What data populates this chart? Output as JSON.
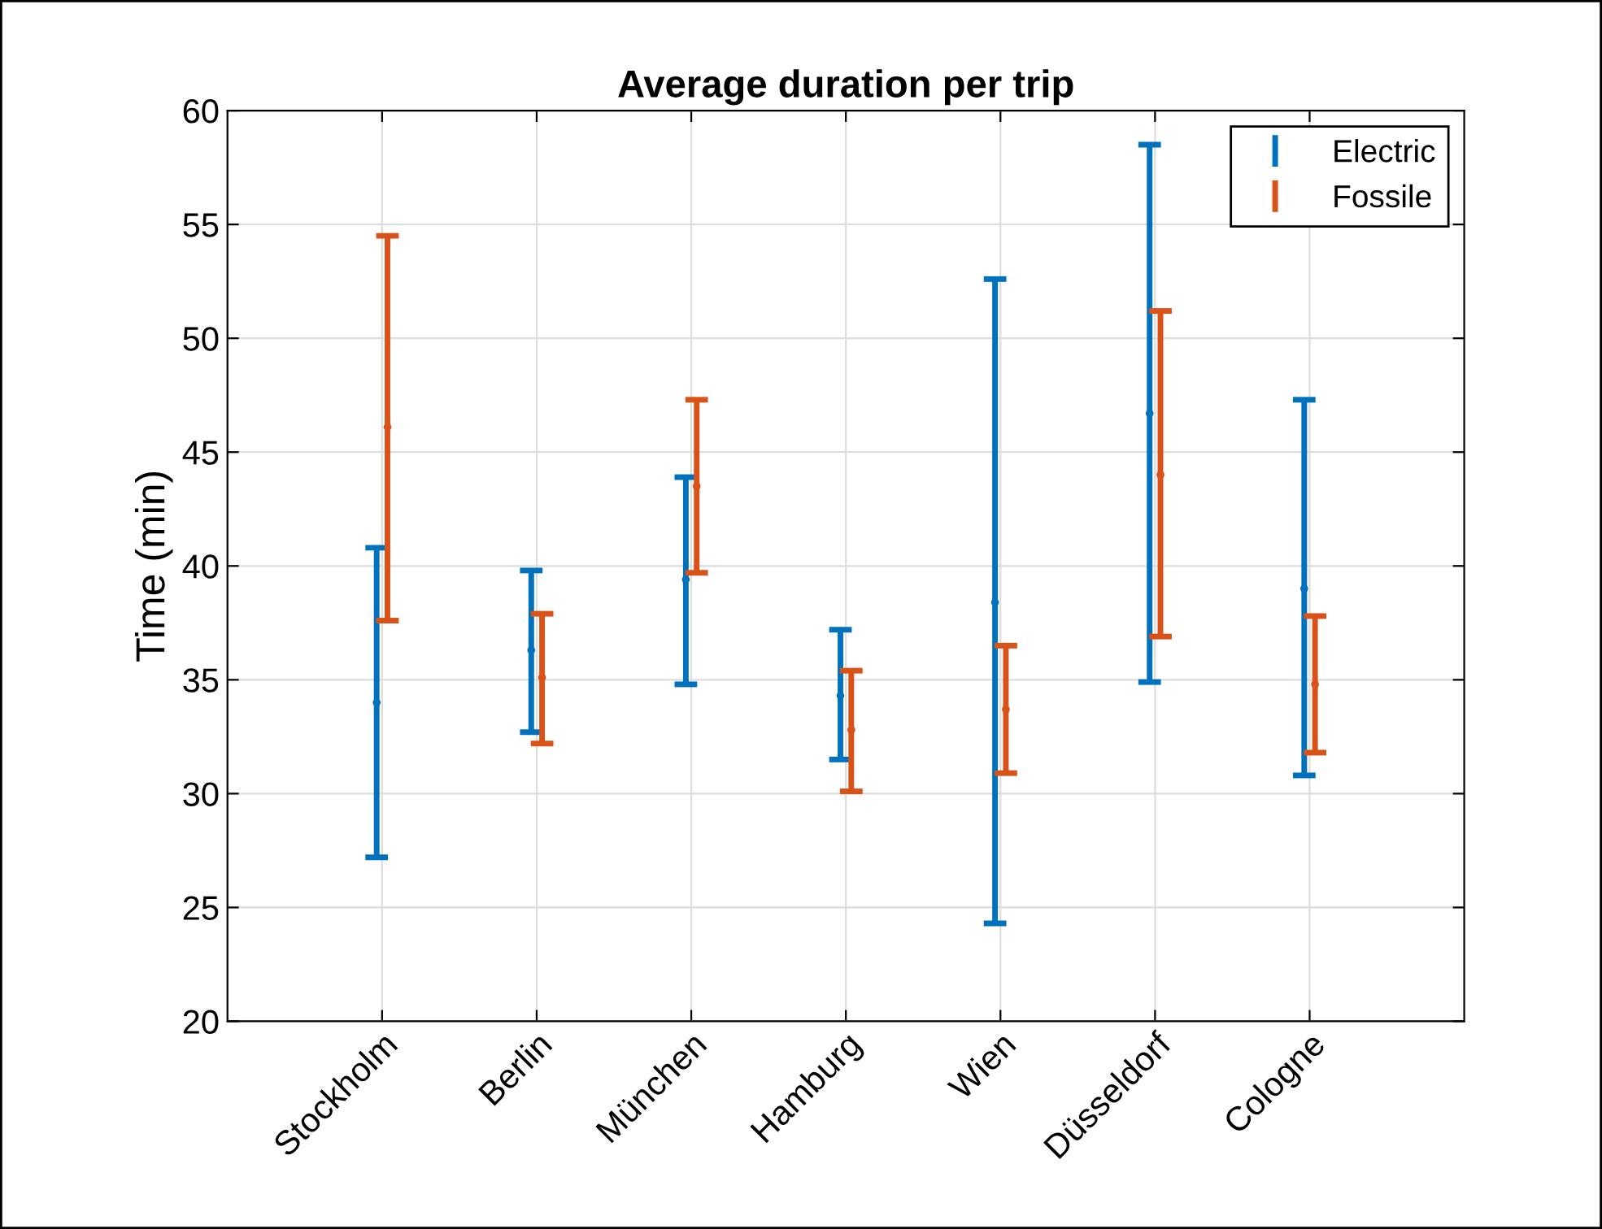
{
  "chart_data": {
    "type": "scatter",
    "title": "Average duration per trip",
    "ylabel": "Time (min)",
    "categories": [
      "Stockholm",
      "Berlin",
      "München",
      "Hamburg",
      "Wien",
      "Düsseldorf",
      "Cologne"
    ],
    "series": [
      {
        "name": "Electric",
        "color": "#0072bd",
        "values": [
          34.0,
          36.3,
          39.4,
          34.3,
          38.4,
          46.7,
          39.0
        ],
        "errors": [
          [
            27.2,
            40.8
          ],
          [
            32.7,
            39.8
          ],
          [
            34.8,
            43.9
          ],
          [
            31.5,
            37.2
          ],
          [
            24.3,
            52.6
          ],
          [
            34.9,
            58.5
          ],
          [
            30.8,
            47.3
          ]
        ]
      },
      {
        "name": "Fossile",
        "color": "#d95319",
        "values": [
          46.1,
          35.1,
          43.5,
          32.8,
          33.7,
          44.0,
          34.8
        ],
        "errors": [
          [
            37.6,
            54.5
          ],
          [
            32.2,
            37.9
          ],
          [
            39.7,
            47.3
          ],
          [
            30.1,
            35.4
          ],
          [
            30.9,
            36.5
          ],
          [
            36.9,
            51.2
          ],
          [
            31.8,
            37.8
          ]
        ]
      }
    ],
    "ylim": [
      20,
      60
    ],
    "yticks": [
      20,
      25,
      30,
      35,
      40,
      45,
      50,
      55,
      60
    ],
    "grid": true,
    "legend": "top right",
    "marker": "circle"
  }
}
